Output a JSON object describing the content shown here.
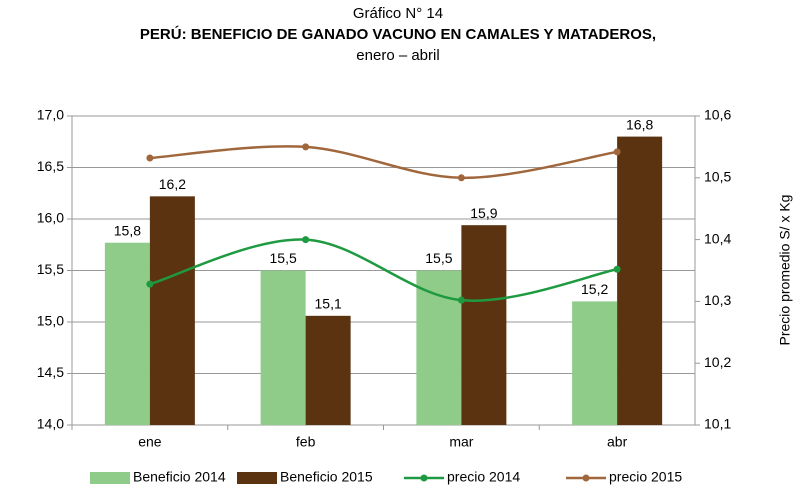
{
  "chart_data": {
    "type": "bar",
    "title": "Gráfico N° 14",
    "subtitle": "PERÚ: BENEFICIO DE GANADO VACUNO EN CAMALES Y MATADEROS,",
    "period": "enero – abril",
    "y2label": "Precio promedio S/ x Kg",
    "categories": [
      "ene",
      "feb",
      "mar",
      "abr"
    ],
    "ylim": [
      14,
      17
    ],
    "yticks": [
      {
        "value": 14,
        "label": "14,0"
      },
      {
        "value": 14.5,
        "label": "14,5"
      },
      {
        "value": 15,
        "label": "15,0"
      },
      {
        "value": 15.5,
        "label": "15,5"
      },
      {
        "value": 16,
        "label": "16,0"
      },
      {
        "value": 16.5,
        "label": "16,5"
      },
      {
        "value": 17,
        "label": "17,0"
      }
    ],
    "y2lim": [
      10.1,
      10.6
    ],
    "y2ticks": [
      {
        "value": 10.1,
        "label": "10,1"
      },
      {
        "value": 10.2,
        "label": "10,2"
      },
      {
        "value": 10.3,
        "label": "10,3"
      },
      {
        "value": 10.4,
        "label": "10,4"
      },
      {
        "value": 10.5,
        "label": "10,5"
      },
      {
        "value": 10.6,
        "label": "10,6"
      }
    ],
    "grid": true,
    "series": [
      {
        "name": "Beneficio 2014",
        "type": "bar",
        "color": "#8fcc8a",
        "values": [
          15.77,
          15.5,
          15.5,
          15.2
        ],
        "value_labels": [
          "15,8",
          "15,5",
          "15,5",
          "15,2"
        ]
      },
      {
        "name": "Beneficio 2015",
        "type": "bar",
        "color": "#5c3311",
        "values": [
          16.22,
          15.06,
          15.94,
          16.8
        ],
        "value_labels": [
          "16,2",
          "15,1",
          "15,9",
          "16,8"
        ]
      },
      {
        "name": "precio 2014",
        "type": "line",
        "axis": "y2",
        "color": "#1e9a40",
        "values": [
          10.328,
          10.4,
          10.302,
          10.352
        ]
      },
      {
        "name": "precio 2015",
        "type": "line",
        "axis": "y2",
        "color": "#a0673c",
        "values": [
          10.532,
          10.55,
          10.5,
          10.542
        ]
      }
    ]
  }
}
